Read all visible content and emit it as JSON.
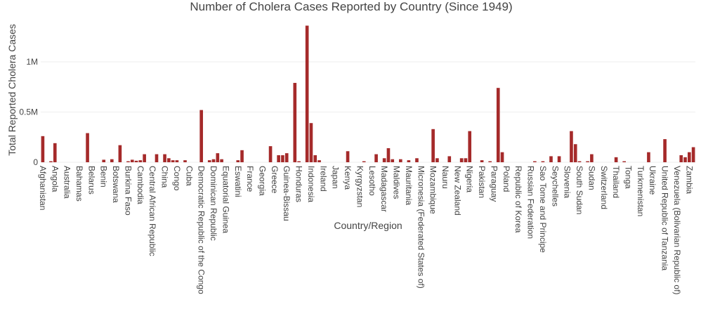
{
  "chart_data": {
    "type": "bar",
    "title": "Number of Cholera Cases Reported by Country (Since 1949)",
    "x_label": "Country/Region",
    "y_label": "Total Reported Cholera Cases",
    "color": "#a52a2a",
    "grid": true,
    "ylim": [
      0,
      1430000
    ],
    "yticks": [
      0,
      {
        "value": 500000,
        "label": "0.5M"
      },
      {
        "value": 1000000,
        "label": "1M"
      }
    ],
    "categories": [
      "Afghanistan",
      null,
      null,
      "Angola",
      null,
      null,
      "Australia",
      null,
      null,
      "Bahamas",
      null,
      null,
      "Belarus",
      null,
      null,
      "Benin",
      null,
      null,
      "Botswana",
      null,
      null,
      "Burkina Faso",
      null,
      null,
      "Cambodia",
      null,
      null,
      "Central African Republic",
      null,
      null,
      "China",
      null,
      null,
      "Congo",
      null,
      null,
      "Cuba",
      null,
      null,
      "Democratic Republic of the Congo",
      null,
      null,
      "Dominican Republic",
      null,
      null,
      "Equatorial Guinea",
      null,
      null,
      "Eswatini",
      null,
      null,
      "France",
      null,
      null,
      "Georgia",
      null,
      null,
      "Greece",
      null,
      null,
      "Guinea-Bissau",
      null,
      null,
      "Honduras",
      null,
      null,
      "Indonesia",
      null,
      null,
      "Ireland",
      null,
      null,
      "Japan",
      null,
      null,
      "Kenya",
      null,
      null,
      "Kyrgyzstan",
      null,
      null,
      "Lesotho",
      null,
      null,
      "Madagascar",
      null,
      null,
      "Maldives",
      null,
      null,
      "Mauritania",
      null,
      null,
      "Micronesia (Federated States of)",
      null,
      null,
      "Mozambique",
      null,
      null,
      "Nauru",
      null,
      null,
      "New Zealand",
      null,
      null,
      "Nigeria",
      null,
      null,
      "Pakistan",
      null,
      null,
      "Paraguay",
      null,
      null,
      "Poland",
      null,
      null,
      "Republic of Korea",
      null,
      null,
      "Russian Federation",
      null,
      null,
      "Sao Tome and Principe",
      null,
      null,
      "Seychelles",
      null,
      null,
      "Slovenia",
      null,
      null,
      "South Sudan",
      null,
      null,
      "Sudan",
      null,
      null,
      "Switzerland",
      null,
      null,
      "Thailand",
      null,
      null,
      "Tonga",
      null,
      null,
      "Turkmenistan",
      null,
      null,
      "Ukraine",
      null,
      null,
      "United Republic of Tanzania",
      null,
      null,
      "Venezuela (Bolivarian Republic of)",
      null,
      null,
      "Zambia",
      null
    ],
    "values": [
      260000,
      0,
      10000,
      190000,
      0,
      0,
      0,
      0,
      0,
      0,
      0,
      290000,
      0,
      0,
      0,
      25000,
      0,
      30000,
      0,
      170000,
      0,
      10000,
      25000,
      15000,
      20000,
      80000,
      0,
      0,
      80000,
      0,
      80000,
      40000,
      20000,
      20000,
      0,
      20000,
      0,
      0,
      0,
      520000,
      0,
      20000,
      30000,
      90000,
      30000,
      0,
      0,
      0,
      20000,
      120000,
      0,
      0,
      0,
      0,
      0,
      0,
      160000,
      0,
      70000,
      70000,
      90000,
      0,
      790000,
      10000,
      0,
      1360000,
      390000,
      70000,
      20000,
      0,
      0,
      0,
      0,
      0,
      0,
      110000,
      0,
      0,
      0,
      10000,
      0,
      0,
      80000,
      0,
      40000,
      140000,
      30000,
      0,
      30000,
      0,
      20000,
      0,
      40000,
      0,
      0,
      0,
      330000,
      40000,
      0,
      0,
      60000,
      0,
      0,
      40000,
      40000,
      310000,
      0,
      0,
      20000,
      0,
      10000,
      0,
      740000,
      100000,
      0,
      0,
      0,
      0,
      0,
      0,
      0,
      10000,
      0,
      10000,
      0,
      60000,
      0,
      60000,
      0,
      0,
      310000,
      180000,
      10000,
      0,
      10000,
      80000,
      0,
      0,
      0,
      0,
      0,
      50000,
      0,
      10000,
      0,
      0,
      0,
      0,
      0,
      100000,
      0,
      0,
      0,
      230000,
      0,
      0,
      0,
      70000,
      50000,
      100000,
      150000
    ]
  }
}
